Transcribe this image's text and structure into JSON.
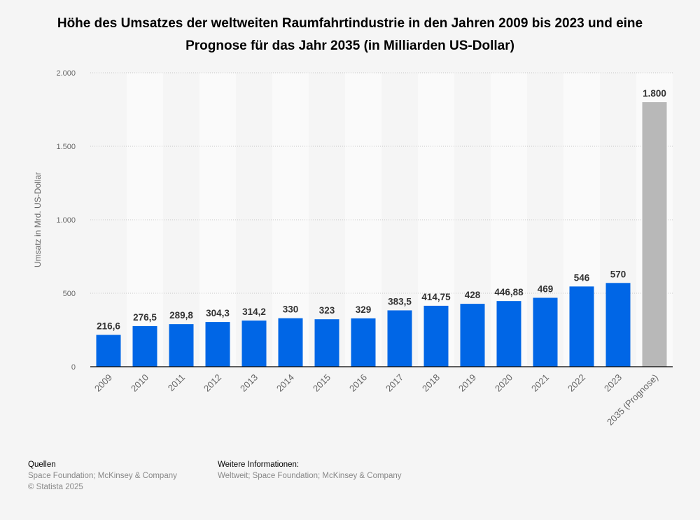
{
  "chart_data": {
    "type": "bar",
    "title": "Höhe des Umsatzes der weltweiten Raumfahrtindustrie in den Jahren 2009 bis 2023 und eine Prognose für das Jahr 2035 (in Milliarden US-Dollar)",
    "xlabel": "",
    "ylabel": "Umsatz in Mrd. US-Dollar",
    "ylim": [
      0,
      2000
    ],
    "yticks": [
      0,
      500,
      1000,
      1500,
      2000
    ],
    "ytick_labels": [
      "0",
      "500",
      "1.000",
      "1.500",
      "2.000"
    ],
    "grid": true,
    "categories": [
      "2009",
      "2010",
      "2011",
      "2012",
      "2013",
      "2014",
      "2015",
      "2016",
      "2017",
      "2018",
      "2019",
      "2020",
      "2021",
      "2022",
      "2023",
      "2035 (Prognose)"
    ],
    "values": [
      216.6,
      276.5,
      289.8,
      304.3,
      314.2,
      330,
      323,
      329,
      383.5,
      414.75,
      428,
      446.88,
      469,
      546,
      570,
      1800
    ],
    "value_labels": [
      "216,6",
      "276,5",
      "289,8",
      "304,3",
      "314,2",
      "330",
      "323",
      "329",
      "383,5",
      "414,75",
      "428",
      "446,88",
      "469",
      "546",
      "570",
      "1.800"
    ],
    "colors": {
      "bar": "#0066e6",
      "forecast": "#b8b8b8"
    }
  },
  "footer": {
    "sources_heading": "Quellen",
    "sources": "Space Foundation; McKinsey & Company",
    "copyright": "© Statista 2025",
    "info_heading": "Weitere Informationen:",
    "info": "Weltweit; Space Foundation; McKinsey & Company"
  }
}
